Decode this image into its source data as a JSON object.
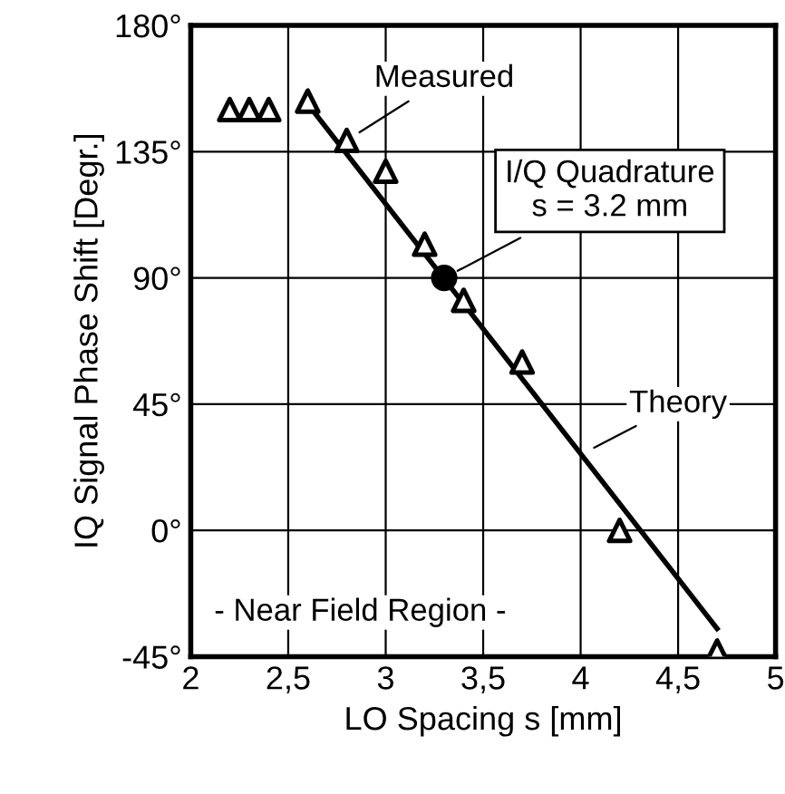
{
  "chart_data": {
    "type": "scatter",
    "xlabel": "LO Spacing s [mm]",
    "ylabel": "IQ Signal Phase Shift [Degr.]",
    "xlim": [
      2,
      5
    ],
    "ylim": [
      -45,
      180
    ],
    "xticks": [
      2,
      {
        "value": 2.5,
        "label": "2,5"
      },
      3,
      {
        "value": 3.5,
        "label": "3,5"
      },
      4,
      {
        "value": 4.5,
        "label": "4,5"
      },
      5
    ],
    "yticks": [
      {
        "value": -45,
        "label": "-45°"
      },
      {
        "value": 0,
        "label": "0°"
      },
      {
        "value": 45,
        "label": "45°"
      },
      {
        "value": 90,
        "label": "90°"
      },
      {
        "value": 135,
        "label": "135°"
      },
      {
        "value": 180,
        "label": "180°"
      }
    ],
    "grid": true,
    "legend": false,
    "series": [
      {
        "marker": "triangle",
        "color": "#000000",
        "x": [
          2.2,
          2.3,
          2.4,
          2.6,
          2.8,
          3.0,
          3.2,
          3.4,
          3.7,
          4.2,
          4.7
        ],
        "values": [
          150,
          150,
          150,
          153,
          139,
          128,
          102,
          82,
          60,
          0,
          -43
        ]
      },
      {
        "type": "line",
        "line_style": "solid",
        "color": "#000000",
        "x": [
          2.6,
          4.7
        ],
        "values": [
          152,
          -35
        ]
      },
      {
        "marker": "circle",
        "color": "#000000",
        "x": [
          3.3
        ],
        "values": [
          90
        ]
      }
    ],
    "annotations": [
      {
        "text": "Measured",
        "x": 2.8,
        "y": 139
      },
      {
        "text": "I/Q Quadrature\ns = 3.2 mm",
        "x": 3.3,
        "y": 90
      },
      {
        "text": "Theory",
        "x": 4.0,
        "y": 27
      },
      "- Near Field Region -"
    ]
  }
}
